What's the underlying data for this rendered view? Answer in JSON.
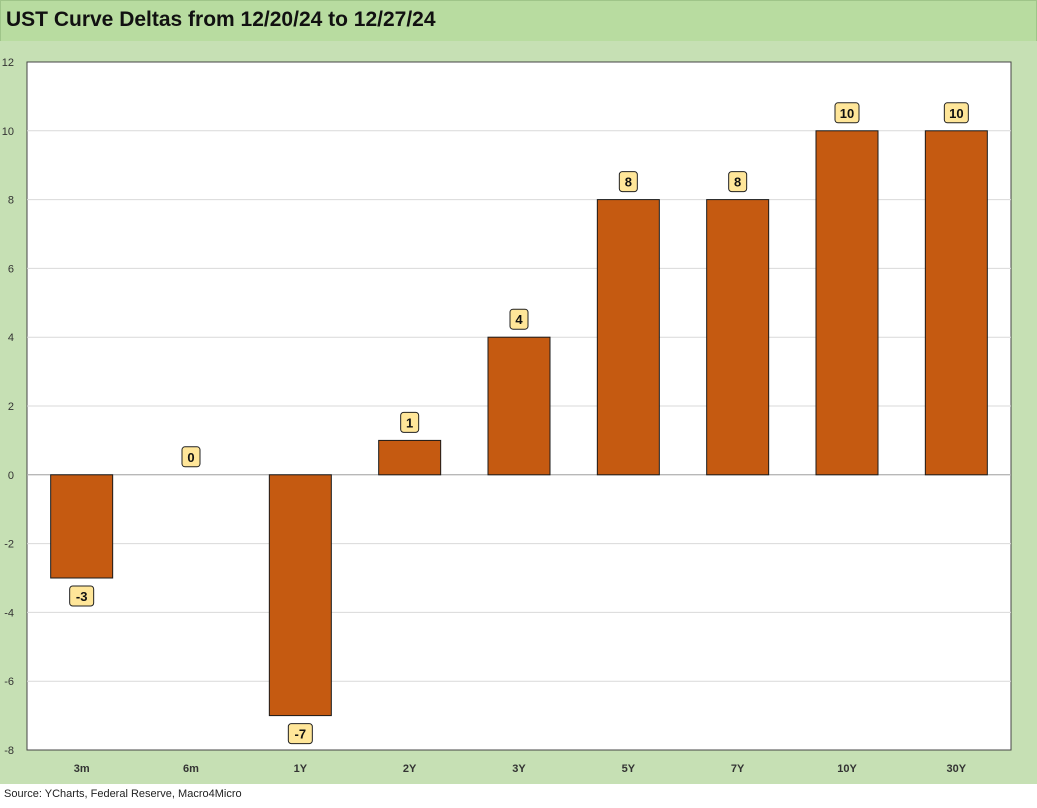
{
  "chart_data": {
    "type": "bar",
    "title": "UST Curve Deltas from 12/20/24 to 12/27/24",
    "categories": [
      "3m",
      "6m",
      "1Y",
      "2Y",
      "3Y",
      "5Y",
      "7Y",
      "10Y",
      "30Y"
    ],
    "values": [
      -3,
      0,
      -7,
      1,
      4,
      8,
      8,
      10,
      10
    ],
    "data_labels": [
      "-3",
      "0",
      "-7",
      "1",
      "4",
      "8",
      "8",
      "10",
      "10"
    ],
    "ylim": [
      -8,
      12
    ],
    "yticks": [
      -8,
      -6,
      -4,
      -2,
      0,
      2,
      4,
      6,
      8,
      10,
      12
    ],
    "xlabel": "",
    "ylabel": "",
    "grid": true,
    "legend": "none",
    "colors": {
      "bar": "#c55a11",
      "bar_edge": "#1a1a1a",
      "label_box": "#ffe699",
      "frame": "#c6e0b4",
      "title_bar": "#b8dca0",
      "gridline": "#d9d9d9"
    }
  },
  "source": "Source: YCharts, Federal Reserve, Macro4Micro"
}
